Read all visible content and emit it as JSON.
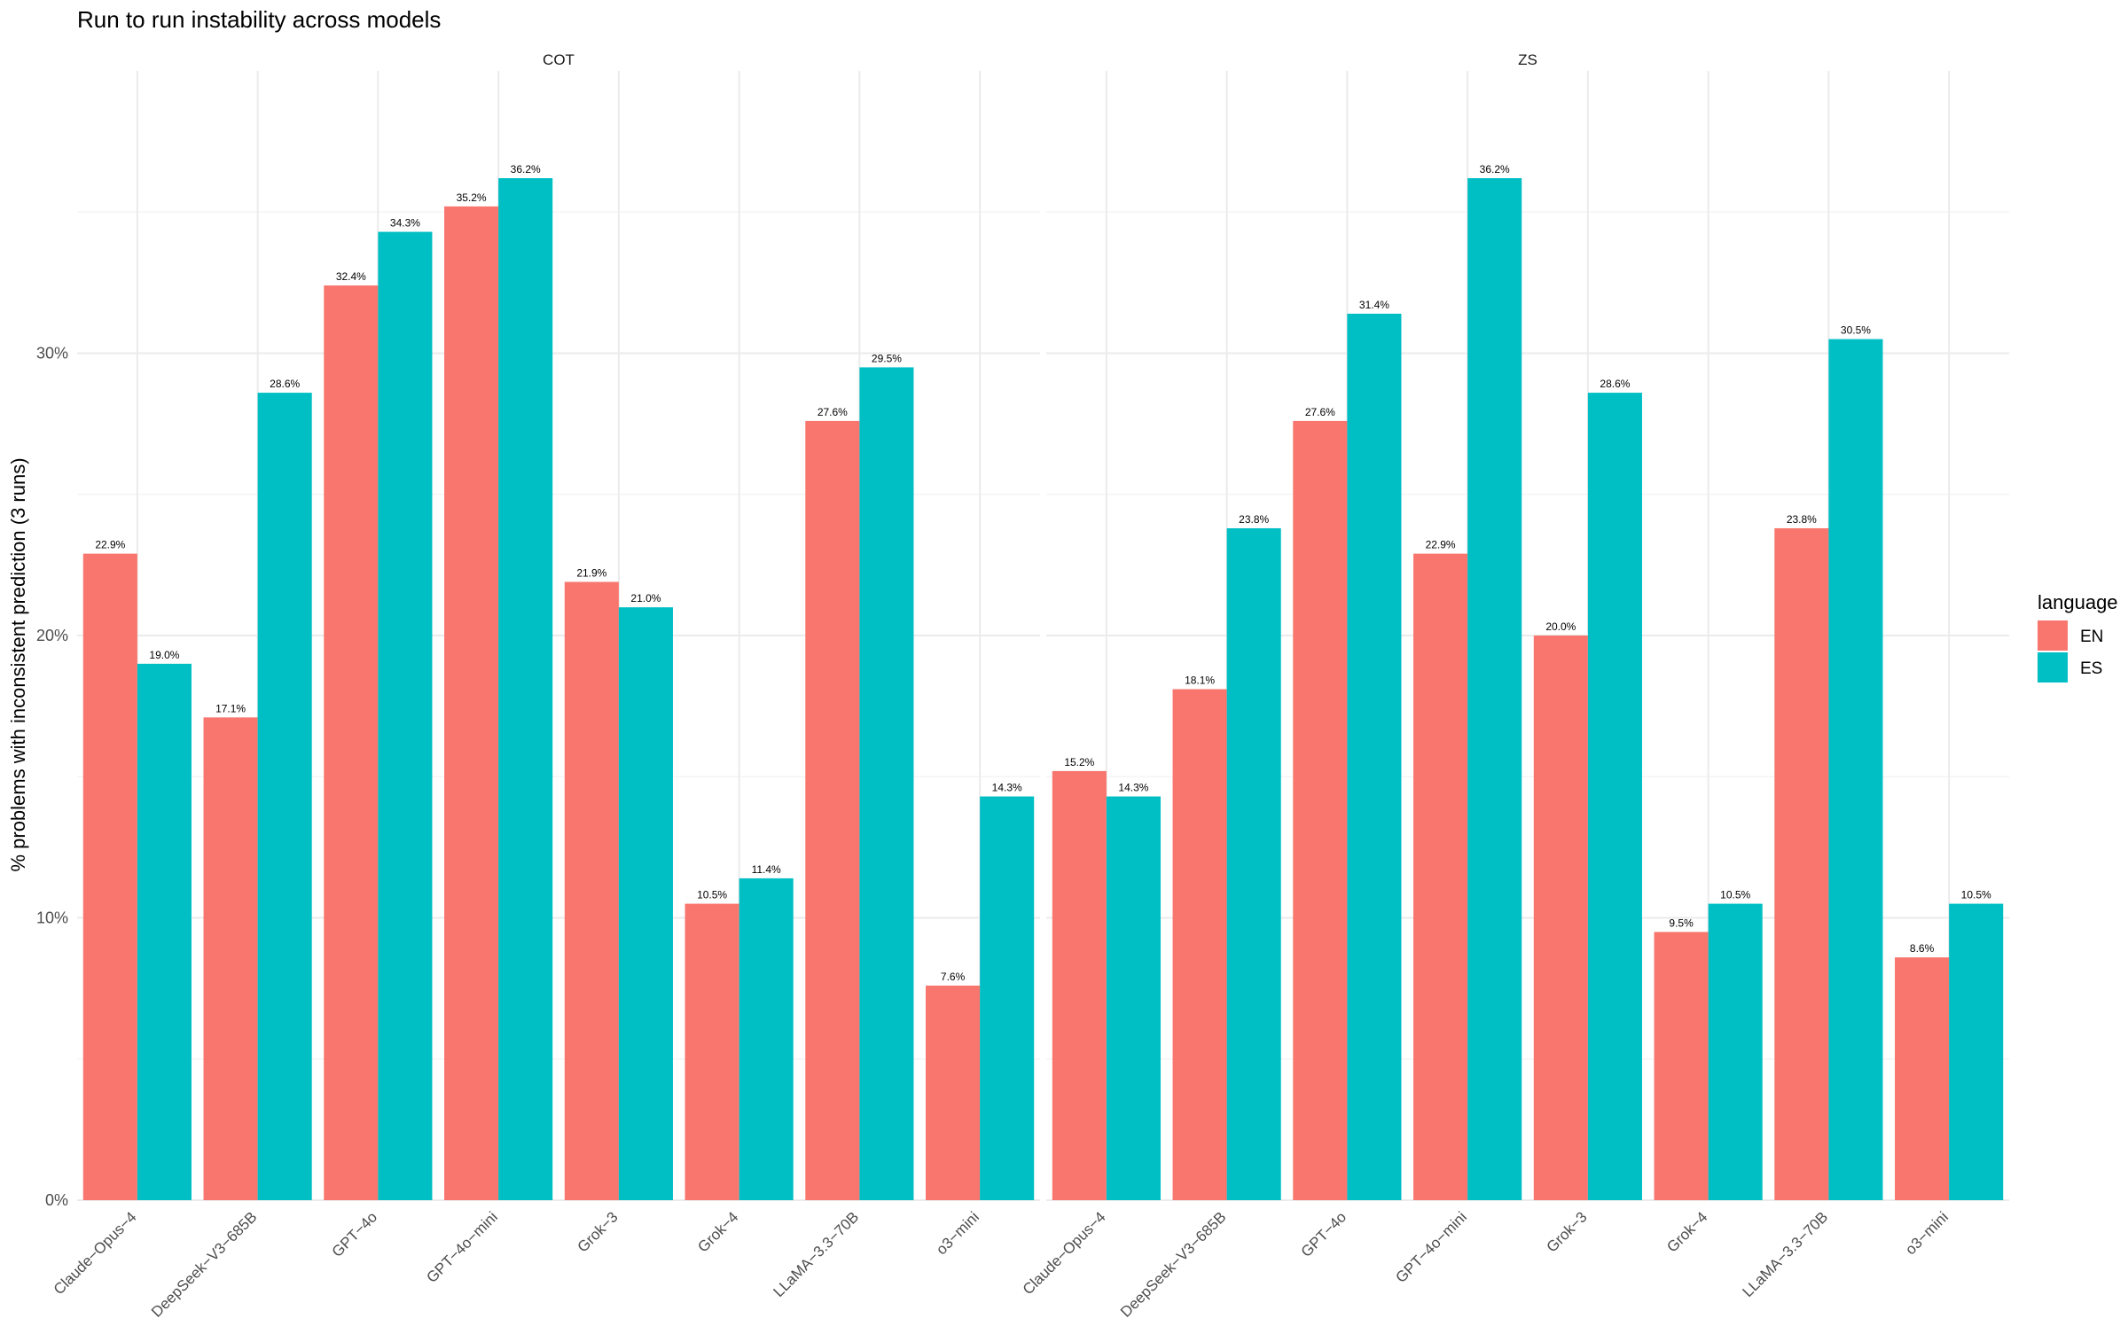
{
  "chart_data": {
    "type": "bar",
    "title": "Run to run instability across models",
    "ylabel": "% problems with inconsistent prediction (3 runs)",
    "xlabel": "",
    "ylim": [
      0,
      40
    ],
    "y_ticks": [
      0,
      10,
      20,
      30
    ],
    "y_tick_labels": [
      "0%",
      "10%",
      "20%",
      "30%"
    ],
    "categories": [
      "Claude−Opus−4",
      "DeepSeek−V3−685B",
      "GPT−4o",
      "GPT−4o−mini",
      "Grok−3",
      "Grok−4",
      "LLaMA−3.3−70B",
      "o3−mini"
    ],
    "legend": {
      "title": "language",
      "position": "right",
      "entries": [
        {
          "name": "EN",
          "color": "#F8766D"
        },
        {
          "name": "ES",
          "color": "#00BFC4"
        }
      ]
    },
    "panels": [
      {
        "name": "COT",
        "series": [
          {
            "name": "EN",
            "values": [
              22.9,
              17.1,
              32.4,
              35.2,
              21.9,
              10.5,
              27.6,
              7.6
            ],
            "labels": [
              "22.9%",
              "17.1%",
              "32.4%",
              "35.2%",
              "21.9%",
              "10.5%",
              "27.6%",
              "7.6%"
            ]
          },
          {
            "name": "ES",
            "values": [
              19.0,
              28.6,
              34.3,
              36.2,
              21.0,
              11.4,
              29.5,
              14.3
            ],
            "labels": [
              "19.0%",
              "28.6%",
              "34.3%",
              "36.2%",
              "21.0%",
              "11.4%",
              "29.5%",
              "14.3%"
            ]
          }
        ]
      },
      {
        "name": "ZS",
        "series": [
          {
            "name": "EN",
            "values": [
              15.2,
              18.1,
              27.6,
              22.9,
              20.0,
              9.5,
              23.8,
              8.6
            ],
            "labels": [
              "15.2%",
              "18.1%",
              "27.6%",
              "22.9%",
              "20.0%",
              "9.5%",
              "23.8%",
              "8.6%"
            ]
          },
          {
            "name": "ES",
            "values": [
              14.3,
              23.8,
              31.4,
              36.2,
              28.6,
              10.5,
              30.5,
              10.5
            ],
            "labels": [
              "14.3%",
              "23.8%",
              "31.4%",
              "36.2%",
              "28.6%",
              "10.5%",
              "30.5%",
              "10.5%"
            ]
          }
        ]
      }
    ]
  }
}
